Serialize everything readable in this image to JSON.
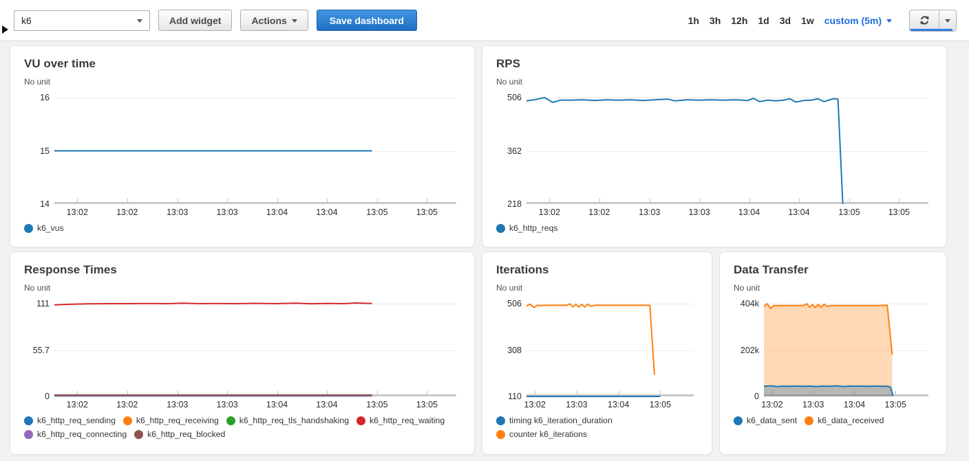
{
  "header": {
    "dashboard_select": "k6",
    "add_widget_label": "Add widget",
    "actions_label": "Actions",
    "save_label": "Save dashboard",
    "ranges": [
      "1h",
      "3h",
      "12h",
      "1d",
      "3d",
      "1w"
    ],
    "custom_range_label": "custom (5m)",
    "refresh_icon": "refresh-icon",
    "sidebar_toggle_icon": "expand-right-icon"
  },
  "colors": {
    "series_blue": "#1f77b4",
    "series_orange": "#ff7f0e",
    "series_green": "#2ca02c",
    "series_red": "#d62728",
    "series_purple": "#9467bd",
    "series_brown": "#8c564b",
    "link_blue": "#1b6ddb",
    "primary_button_blue": "#2b7ccc"
  },
  "charts": [
    {
      "id": "vu",
      "title": "VU over time",
      "unit": "No unit",
      "type": "line",
      "ylim": [
        14,
        16
      ],
      "y_ticks": [
        {
          "label": "16",
          "value": 16
        },
        {
          "label": "15",
          "value": 15
        },
        {
          "label": "14",
          "value": 14
        }
      ],
      "x_ticks": [
        {
          "pos": 0.057,
          "label": "13:02"
        },
        {
          "pos": 0.181,
          "label": "13:02"
        },
        {
          "pos": 0.306,
          "label": "13:03"
        },
        {
          "pos": 0.43,
          "label": "13:03"
        },
        {
          "pos": 0.554,
          "label": "13:04"
        },
        {
          "pos": 0.678,
          "label": "13:04"
        },
        {
          "pos": 0.803,
          "label": "13:05"
        },
        {
          "pos": 0.927,
          "label": "13:05"
        }
      ],
      "series": [
        {
          "name": "k6_vus",
          "color": "#1f77b4",
          "area": false,
          "points": [
            [
              0,
              15
            ],
            [
              0.79,
              15
            ]
          ]
        }
      ],
      "legend": [
        {
          "label": "k6_vus",
          "color": "#1f77b4"
        }
      ]
    },
    {
      "id": "rps",
      "title": "RPS",
      "unit": "No unit",
      "type": "line",
      "ylim": [
        218,
        506
      ],
      "y_ticks": [
        {
          "label": "506",
          "value": 506
        },
        {
          "label": "362",
          "value": 362
        },
        {
          "label": "218",
          "value": 218
        }
      ],
      "x_ticks": [
        {
          "pos": 0.057,
          "label": "13:02"
        },
        {
          "pos": 0.181,
          "label": "13:02"
        },
        {
          "pos": 0.306,
          "label": "13:03"
        },
        {
          "pos": 0.43,
          "label": "13:03"
        },
        {
          "pos": 0.554,
          "label": "13:04"
        },
        {
          "pos": 0.678,
          "label": "13:04"
        },
        {
          "pos": 0.803,
          "label": "13:05"
        },
        {
          "pos": 0.927,
          "label": "13:05"
        }
      ],
      "series": [
        {
          "name": "k6_http_reqs",
          "color": "#1f77b4",
          "area": false,
          "points": [
            [
              0,
              497
            ],
            [
              0.02,
              500
            ],
            [
              0.045,
              506
            ],
            [
              0.065,
              493
            ],
            [
              0.085,
              499
            ],
            [
              0.11,
              499
            ],
            [
              0.14,
              500
            ],
            [
              0.17,
              498
            ],
            [
              0.2,
              500
            ],
            [
              0.23,
              499
            ],
            [
              0.26,
              500
            ],
            [
              0.29,
              498
            ],
            [
              0.32,
              500
            ],
            [
              0.35,
              502
            ],
            [
              0.37,
              497
            ],
            [
              0.4,
              500
            ],
            [
              0.43,
              499
            ],
            [
              0.46,
              500
            ],
            [
              0.49,
              499
            ],
            [
              0.52,
              500
            ],
            [
              0.55,
              498
            ],
            [
              0.565,
              504
            ],
            [
              0.58,
              495
            ],
            [
              0.6,
              499
            ],
            [
              0.62,
              497
            ],
            [
              0.64,
              499
            ],
            [
              0.655,
              503
            ],
            [
              0.67,
              494
            ],
            [
              0.69,
              498
            ],
            [
              0.71,
              499
            ],
            [
              0.725,
              503
            ],
            [
              0.74,
              495
            ],
            [
              0.755,
              500
            ],
            [
              0.765,
              503
            ],
            [
              0.775,
              502
            ],
            [
              0.787,
              218
            ]
          ]
        }
      ],
      "legend": [
        {
          "label": "k6_http_reqs",
          "color": "#1f77b4"
        }
      ]
    },
    {
      "id": "rt",
      "title": "Response Times",
      "unit": "No unit",
      "type": "line",
      "ylim": [
        0,
        111
      ],
      "y_ticks": [
        {
          "label": "111",
          "value": 111
        },
        {
          "label": "55.7",
          "value": 55.7
        },
        {
          "label": "0",
          "value": 0
        }
      ],
      "x_ticks": [
        {
          "pos": 0.057,
          "label": "13:02"
        },
        {
          "pos": 0.181,
          "label": "13:02"
        },
        {
          "pos": 0.306,
          "label": "13:03"
        },
        {
          "pos": 0.43,
          "label": "13:03"
        },
        {
          "pos": 0.554,
          "label": "13:04"
        },
        {
          "pos": 0.678,
          "label": "13:04"
        },
        {
          "pos": 0.803,
          "label": "13:05"
        },
        {
          "pos": 0.927,
          "label": "13:05"
        }
      ],
      "series": [
        {
          "name": "k6_http_req_sending",
          "color": "#1f77b4",
          "area": false,
          "points": [
            [
              0,
              0.7
            ],
            [
              0.79,
              0.7
            ]
          ]
        },
        {
          "name": "k6_http_req_receiving",
          "color": "#ff7f0e",
          "area": false,
          "points": [
            [
              0,
              0.9
            ],
            [
              0.79,
              0.9
            ]
          ]
        },
        {
          "name": "k6_http_req_tls_handshaking",
          "color": "#2ca02c",
          "area": false,
          "points": [
            [
              0,
              0.5
            ],
            [
              0.79,
              0.5
            ]
          ]
        },
        {
          "name": "k6_http_req_waiting",
          "color": "#d62728",
          "area": false,
          "points": [
            [
              0,
              109.5
            ],
            [
              0.04,
              110.3
            ],
            [
              0.08,
              110.8
            ],
            [
              0.13,
              111
            ],
            [
              0.18,
              111
            ],
            [
              0.23,
              111.2
            ],
            [
              0.28,
              111
            ],
            [
              0.32,
              111.6
            ],
            [
              0.36,
              111
            ],
            [
              0.4,
              111.2
            ],
            [
              0.45,
              111
            ],
            [
              0.5,
              111.4
            ],
            [
              0.55,
              111
            ],
            [
              0.6,
              111.6
            ],
            [
              0.64,
              110.9
            ],
            [
              0.68,
              111.3
            ],
            [
              0.72,
              111
            ],
            [
              0.75,
              111.8
            ],
            [
              0.79,
              111.2
            ]
          ]
        },
        {
          "name": "k6_http_req_connecting",
          "color": "#9467bd",
          "area": false,
          "points": [
            [
              0,
              0.6
            ],
            [
              0.79,
              0.6
            ]
          ]
        },
        {
          "name": "k6_http_req_blocked",
          "color": "#8c564b",
          "area": false,
          "points": [
            [
              0,
              1.7
            ],
            [
              0.79,
              1.7
            ]
          ]
        }
      ],
      "legend": [
        {
          "label": "k6_http_req_sending",
          "color": "#1f77b4"
        },
        {
          "label": "k6_http_req_receiving",
          "color": "#ff7f0e"
        },
        {
          "label": "k6_http_req_tls_handshaking",
          "color": "#2ca02c"
        },
        {
          "label": "k6_http_req_waiting",
          "color": "#d62728"
        },
        {
          "label": "k6_http_req_connecting",
          "color": "#9467bd"
        },
        {
          "label": "k6_http_req_blocked",
          "color": "#8c564b"
        }
      ]
    },
    {
      "id": "iter",
      "title": "Iterations",
      "unit": "No unit",
      "type": "line",
      "ylim": [
        110,
        506
      ],
      "y_ticks": [
        {
          "label": "506",
          "value": 506
        },
        {
          "label": "308",
          "value": 308
        },
        {
          "label": "110",
          "value": 110
        }
      ],
      "x_ticks": [
        {
          "pos": 0.05,
          "label": "13:02"
        },
        {
          "pos": 0.3,
          "label": "13:03"
        },
        {
          "pos": 0.55,
          "label": "13:04"
        },
        {
          "pos": 0.8,
          "label": "13:05"
        }
      ],
      "series": [
        {
          "name": "timing k6_iteration_duration",
          "color": "#1f77b4",
          "area": false,
          "points": [
            [
              0,
              110
            ],
            [
              0.8,
              110
            ]
          ]
        },
        {
          "name": "counter k6_iterations",
          "color": "#ff7f0e",
          "area": false,
          "points": [
            [
              0,
              496
            ],
            [
              0.02,
              504
            ],
            [
              0.045,
              490
            ],
            [
              0.065,
              499
            ],
            [
              0.09,
              498
            ],
            [
              0.12,
              499
            ],
            [
              0.16,
              499
            ],
            [
              0.2,
              499
            ],
            [
              0.24,
              499
            ],
            [
              0.26,
              505
            ],
            [
              0.278,
              492
            ],
            [
              0.295,
              503
            ],
            [
              0.312,
              491
            ],
            [
              0.33,
              503
            ],
            [
              0.348,
              492
            ],
            [
              0.366,
              504
            ],
            [
              0.385,
              495
            ],
            [
              0.41,
              499
            ],
            [
              0.45,
              499
            ],
            [
              0.5,
              499
            ],
            [
              0.55,
              499
            ],
            [
              0.6,
              499
            ],
            [
              0.65,
              499
            ],
            [
              0.7,
              499
            ],
            [
              0.738,
              499
            ],
            [
              0.765,
              203
            ]
          ]
        }
      ],
      "legend": [
        {
          "label": "timing k6_iteration_duration",
          "color": "#1f77b4"
        },
        {
          "label": "counter k6_iterations",
          "color": "#ff7f0e"
        }
      ]
    },
    {
      "id": "dt",
      "title": "Data Transfer",
      "unit": "No unit",
      "type": "area",
      "ylim": [
        0,
        404000
      ],
      "y_ticks": [
        {
          "label": "404k",
          "value": 404
        },
        {
          "label": "202k",
          "value": 202
        },
        {
          "label": "0",
          "value": 0
        }
      ],
      "x_ticks": [
        {
          "pos": 0.05,
          "label": "13:02"
        },
        {
          "pos": 0.3,
          "label": "13:03"
        },
        {
          "pos": 0.55,
          "label": "13:04"
        },
        {
          "pos": 0.8,
          "label": "13:05"
        }
      ],
      "series": [
        {
          "name": "k6_data_received",
          "color": "#ff7f0e",
          "area": true,
          "fill_opacity": 0.3,
          "points": [
            [
              0,
              392
            ],
            [
              0.02,
              404
            ],
            [
              0.04,
              383
            ],
            [
              0.06,
              396
            ],
            [
              0.09,
              395
            ],
            [
              0.12,
              396
            ],
            [
              0.16,
              396
            ],
            [
              0.2,
              396
            ],
            [
              0.24,
              396
            ],
            [
              0.26,
              404
            ],
            [
              0.278,
              388
            ],
            [
              0.295,
              400
            ],
            [
              0.312,
              387
            ],
            [
              0.33,
              401
            ],
            [
              0.348,
              388
            ],
            [
              0.366,
              402
            ],
            [
              0.385,
              392
            ],
            [
              0.41,
              396
            ],
            [
              0.45,
              396
            ],
            [
              0.5,
              396
            ],
            [
              0.55,
              396
            ],
            [
              0.6,
              396
            ],
            [
              0.65,
              396
            ],
            [
              0.7,
              396
            ],
            [
              0.75,
              397
            ],
            [
              0.78,
              182
            ]
          ]
        },
        {
          "name": "k6_data_sent",
          "color": "#1f77b4",
          "area": true,
          "fill_opacity": 0.32,
          "points": [
            [
              0,
              44
            ],
            [
              0.04,
              46
            ],
            [
              0.08,
              43
            ],
            [
              0.12,
              45
            ],
            [
              0.16,
              44
            ],
            [
              0.2,
              45
            ],
            [
              0.24,
              44
            ],
            [
              0.28,
              45
            ],
            [
              0.32,
              43
            ],
            [
              0.36,
              45
            ],
            [
              0.4,
              44
            ],
            [
              0.44,
              46
            ],
            [
              0.48,
              43
            ],
            [
              0.52,
              45
            ],
            [
              0.56,
              44
            ],
            [
              0.6,
              45
            ],
            [
              0.64,
              44
            ],
            [
              0.68,
              45
            ],
            [
              0.72,
              44
            ],
            [
              0.75,
              45
            ],
            [
              0.77,
              40
            ],
            [
              0.785,
              2
            ]
          ]
        }
      ],
      "legend": [
        {
          "label": "k6_data_sent",
          "color": "#1f77b4"
        },
        {
          "label": "k6_data_received",
          "color": "#ff7f0e"
        }
      ]
    }
  ]
}
